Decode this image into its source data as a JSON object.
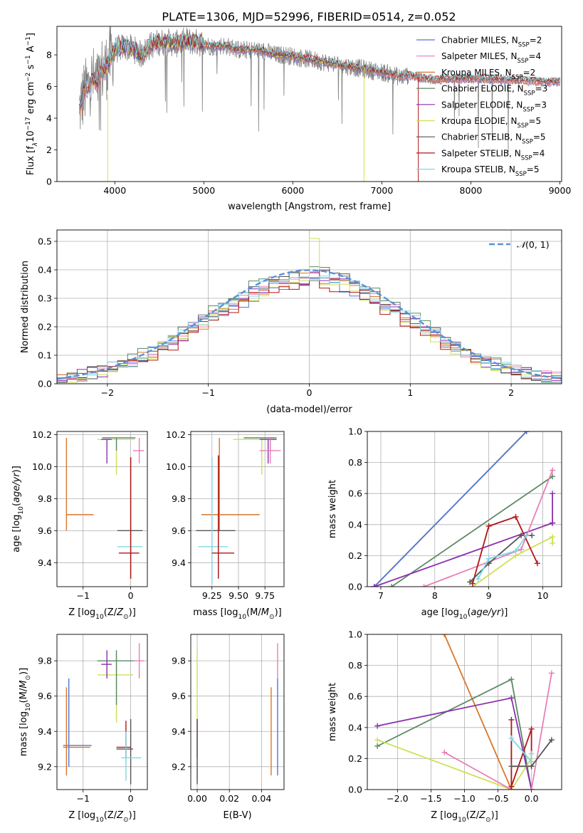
{
  "title": "PLATE=1306, MJD=52996, FIBERID=0514, z=0.052",
  "colors": {
    "chabrier_miles": "#4f79d4",
    "salpeter_miles": "#e87fb7",
    "kroupa_miles": "#d9762b",
    "chabrier_elodie": "#5a8a64",
    "salpeter_elodie": "#8b2fae",
    "kroupa_elodie": "#cfe052",
    "chabrier_stelib": "#555555",
    "salpeter_stelib": "#b31515",
    "kroupa_stelib": "#7fd8e4",
    "gauss": "#5b8fd9",
    "obs": "#808080"
  },
  "legend": [
    {
      "label": "Chabrier MILES, N",
      "sub": "SSP",
      "tail": "=2",
      "color": "#4f79d4"
    },
    {
      "label": "Salpeter MILES, N",
      "sub": "SSP",
      "tail": "=4",
      "color": "#e87fb7"
    },
    {
      "label": "Kroupa MILES, N",
      "sub": "SSP",
      "tail": "=2",
      "color": "#d9762b"
    },
    {
      "label": "Chabrier ELODIE, N",
      "sub": "SSP",
      "tail": "=3",
      "color": "#5a8a64"
    },
    {
      "label": "Salpeter ELODIE, N",
      "sub": "SSP",
      "tail": "=3",
      "color": "#8b2fae"
    },
    {
      "label": "Kroupa ELODIE, N",
      "sub": "SSP",
      "tail": "=5",
      "color": "#cfe052"
    },
    {
      "label": "Chabrier STELIB, N",
      "sub": "SSP",
      "tail": "=5",
      "color": "#555555"
    },
    {
      "label": "Salpeter STELIB, N",
      "sub": "SSP",
      "tail": "=4",
      "color": "#b31515"
    },
    {
      "label": "Kroupa STELIB, N",
      "sub": "SSP",
      "tail": "=5",
      "color": "#7fd8e4"
    }
  ],
  "chart_data": [
    {
      "id": "spectrum",
      "type": "line",
      "xlabel": "wavelength [Angstrom, rest frame]",
      "ylabel": "Flux [f",
      "xlim": [
        3350,
        9020
      ],
      "ylim": [
        0,
        9.8
      ],
      "xticks": [
        "4000",
        "5000",
        "6000",
        "7000",
        "8000",
        "9000"
      ],
      "yticks": [
        "0",
        "2",
        "4",
        "6",
        "8"
      ],
      "grid": false,
      "legend_position": "right",
      "continuum": {
        "x": [
          3600,
          3650,
          3700,
          3750,
          3800,
          3850,
          3900,
          3950,
          4000,
          4100,
          4200,
          4300,
          4400,
          4500,
          4600,
          4700,
          4800,
          4900,
          5000,
          5100,
          5200,
          5300,
          5400,
          5500,
          5600,
          5700,
          5800,
          5900,
          6000,
          6100,
          6200,
          6300,
          6400,
          6500,
          6600,
          6700,
          6800,
          6900,
          7000,
          7100,
          7200,
          7300,
          7400,
          7500,
          7600,
          7700,
          7800,
          7900,
          8000,
          8200,
          8400,
          8600,
          8800,
          9000
        ],
        "y": [
          4.5,
          5.5,
          6.0,
          6.5,
          6.1,
          7.0,
          7.2,
          7.8,
          8.3,
          8.5,
          8.4,
          8.0,
          8.6,
          8.8,
          8.8,
          8.7,
          8.9,
          8.8,
          8.7,
          8.5,
          8.6,
          8.5,
          8.3,
          8.3,
          8.3,
          8.2,
          8.0,
          8.0,
          7.9,
          7.8,
          7.7,
          7.6,
          7.5,
          7.4,
          7.3,
          7.2,
          7.1,
          7.0,
          6.9,
          6.8,
          6.6,
          6.7,
          6.6,
          6.5,
          6.4,
          6.5,
          6.5,
          6.5,
          6.5,
          6.5,
          6.4,
          6.4,
          6.3,
          6.3
        ]
      }
    },
    {
      "id": "residuals",
      "type": "histogram",
      "xlabel": "(data-model)/error",
      "ylabel": "Normed distribution",
      "xlim": [
        -2.5,
        2.5
      ],
      "ylim": [
        0,
        0.54
      ],
      "xticks": [
        "−2",
        "−1",
        "0",
        "1",
        "2"
      ],
      "yticks": [
        "0.0",
        "0.1",
        "0.2",
        "0.3",
        "0.4",
        "0.5"
      ],
      "grid": true,
      "legend_position": "top-right",
      "gauss_label": "(0, 1)",
      "bin_width": 0.1,
      "series_peak": [
        0.36,
        0.38,
        0.37,
        0.4,
        0.37,
        0.36,
        0.39,
        0.35,
        0.38
      ]
    },
    {
      "id": "Z_vs_age",
      "type": "scatter",
      "xlabel": "Z [log",
      "ylabel": "age  [log",
      "xlim": [
        -1.55,
        0.35
      ],
      "ylim": [
        9.25,
        10.22
      ],
      "xticks": [
        "−1",
        "0"
      ],
      "yticks": [
        "9.4",
        "9.6",
        "9.8",
        "10.0",
        "10.2"
      ],
      "grid": true,
      "points": [
        {
          "s": "kroupa_miles",
          "x": -1.35,
          "y": 9.7,
          "xe": [
            -1.35,
            -0.78
          ],
          "ye": [
            9.6,
            10.18
          ]
        },
        {
          "s": "chabrier_stelib",
          "x": 0.0,
          "y": 9.6,
          "xe": [
            -0.28,
            0.25
          ],
          "ye": [
            9.3,
            10.05
          ]
        },
        {
          "s": "kroupa_stelib",
          "x": 0.0,
          "y": 9.5,
          "xe": [
            -0.28,
            0.25
          ],
          "ye": [
            9.3,
            10.06
          ]
        },
        {
          "s": "salpeter_stelib",
          "x": 0.0,
          "y": 9.46,
          "xe": [
            -0.25,
            0.18
          ],
          "ye": [
            9.3,
            10.06
          ]
        },
        {
          "s": "kroupa_elodie",
          "x": -0.3,
          "y": 10.17,
          "xe": [
            -0.7,
            0.08
          ],
          "ye": [
            9.95,
            10.17
          ]
        },
        {
          "s": "chabrier_elodie",
          "x": -0.3,
          "y": 10.18,
          "xe": [
            -0.6,
            0.1
          ],
          "ye": [
            10.1,
            10.18
          ]
        },
        {
          "s": "salpeter_elodie",
          "x": -0.5,
          "y": 10.17,
          "xe": [
            -0.62,
            -0.4
          ],
          "ye": [
            10.02,
            10.17
          ]
        },
        {
          "s": "salpeter_miles",
          "x": 0.18,
          "y": 10.1,
          "xe": [
            0.05,
            0.28
          ],
          "ye": [
            10.02,
            10.18
          ]
        }
      ]
    },
    {
      "id": "mass_vs_age",
      "type": "scatter",
      "xlabel": "mass [log",
      "ylabel": "",
      "xlim": [
        9.05,
        9.93
      ],
      "ylim": [
        9.25,
        10.22
      ],
      "xticks": [
        "9.25",
        "9.50",
        "9.75"
      ],
      "yticks": [
        "9.4",
        "9.6",
        "9.8",
        "10.0",
        "10.2"
      ],
      "grid": true,
      "points": [
        {
          "s": "kroupa_miles",
          "x": 9.32,
          "y": 9.7,
          "xe": [
            9.15,
            9.7
          ],
          "ye": [
            9.6,
            10.18
          ]
        },
        {
          "s": "chabrier_stelib",
          "x": 9.31,
          "y": 9.6,
          "xe": [
            9.1,
            9.47
          ],
          "ye": [
            9.3,
            10.07
          ]
        },
        {
          "s": "kroupa_stelib",
          "x": 9.25,
          "y": 9.5,
          "xe": [
            9.12,
            9.4
          ],
          "ye": [
            9.27,
            10.06
          ]
        },
        {
          "s": "salpeter_stelib",
          "x": 9.31,
          "y": 9.46,
          "xe": [
            9.25,
            9.46
          ],
          "ye": [
            9.3,
            10.07
          ]
        },
        {
          "s": "kroupa_elodie",
          "x": 9.72,
          "y": 10.17,
          "xe": [
            9.45,
            9.84
          ],
          "ye": [
            9.95,
            10.17
          ]
        },
        {
          "s": "chabrier_elodie",
          "x": 9.8,
          "y": 10.18,
          "xe": [
            9.55,
            9.86
          ],
          "ye": [
            10.1,
            10.18
          ]
        },
        {
          "s": "salpeter_elodie",
          "x": 9.78,
          "y": 10.17,
          "xe": [
            9.7,
            9.86
          ],
          "ye": [
            10.02,
            10.17
          ]
        },
        {
          "s": "salpeter_miles",
          "x": 9.8,
          "y": 10.1,
          "xe": [
            9.7,
            9.9
          ],
          "ye": [
            10.02,
            10.18
          ]
        }
      ]
    },
    {
      "id": "age_vs_weight",
      "type": "line",
      "xlabel": "age  [log",
      "ylabel": "mass weight",
      "xlim": [
        6.75,
        10.35
      ],
      "ylim": [
        0,
        1.0
      ],
      "xticks": [
        "7",
        "8",
        "9",
        "10"
      ],
      "yticks": [
        "0.0",
        "0.2",
        "0.4",
        "0.6",
        "0.8",
        "1.0"
      ],
      "grid": true,
      "series": [
        {
          "s": "kroupa_miles",
          "x": [
            6.88,
            9.7
          ],
          "y": [
            0.0,
            1.0
          ]
        },
        {
          "s": "chabrier_miles",
          "x": [
            6.88,
            9.7
          ],
          "y": [
            0.0,
            1.0
          ]
        },
        {
          "s": "chabrier_elodie",
          "x": [
            7.2,
            10.18
          ],
          "y": [
            0.0,
            0.71
          ]
        },
        {
          "s": "salpeter_elodie",
          "x": [
            6.88,
            10.18
          ],
          "y": [
            0.0,
            0.41
          ]
        },
        {
          "s": "salpeter_elodie",
          "x": [
            10.18,
            10.18
          ],
          "y": [
            0.41,
            0.6
          ]
        },
        {
          "s": "kroupa_elodie",
          "x": [
            8.7,
            9.5,
            10.18,
            10.18
          ],
          "y": [
            0.0,
            0.2,
            0.32,
            0.28
          ]
        },
        {
          "s": "salpeter_miles",
          "x": [
            7.8,
            9.6,
            10.18
          ],
          "y": [
            0.0,
            0.24,
            0.75
          ]
        },
        {
          "s": "salpeter_stelib",
          "x": [
            8.7,
            9.0,
            9.5,
            9.9
          ],
          "y": [
            0.02,
            0.39,
            0.45,
            0.15
          ]
        },
        {
          "s": "chabrier_stelib",
          "x": [
            8.65,
            9.0,
            9.6,
            9.8
          ],
          "y": [
            0.03,
            0.15,
            0.33,
            0.33
          ]
        },
        {
          "s": "kroupa_stelib",
          "x": [
            8.8,
            9.0,
            9.5,
            9.7
          ],
          "y": [
            0.05,
            0.18,
            0.23,
            0.33
          ]
        }
      ]
    },
    {
      "id": "Z_vs_mass",
      "type": "scatter",
      "xlabel": "Z [log",
      "ylabel": "mass [log",
      "xlim": [
        -1.55,
        0.35
      ],
      "ylim": [
        9.07,
        9.95
      ],
      "xticks": [
        "−1",
        "0"
      ],
      "yticks": [
        "9.2",
        "9.4",
        "9.6",
        "9.8"
      ],
      "grid": true,
      "points": [
        {
          "s": "chabrier_miles",
          "x": -1.3,
          "y": 9.32,
          "xe": [
            -1.42,
            -0.82
          ],
          "ye": [
            9.2,
            9.7
          ]
        },
        {
          "s": "kroupa_miles",
          "x": -1.35,
          "y": 9.31,
          "xe": [
            -1.42,
            -0.85
          ],
          "ye": [
            9.15,
            9.65
          ]
        },
        {
          "s": "chabrier_stelib",
          "x": 0.0,
          "y": 9.3,
          "xe": [
            -0.3,
            0.05
          ],
          "ye": [
            9.1,
            9.47
          ]
        },
        {
          "s": "salpeter_stelib",
          "x": -0.1,
          "y": 9.31,
          "xe": [
            -0.3,
            0.0
          ],
          "ye": [
            9.25,
            9.46
          ]
        },
        {
          "s": "kroupa_stelib",
          "x": -0.1,
          "y": 9.25,
          "xe": [
            -0.2,
            0.22
          ],
          "ye": [
            9.12,
            9.4
          ]
        },
        {
          "s": "kroupa_elodie",
          "x": -0.3,
          "y": 9.72,
          "xe": [
            -0.7,
            0.05
          ],
          "ye": [
            9.45,
            9.84
          ]
        },
        {
          "s": "chabrier_elodie",
          "x": -0.3,
          "y": 9.8,
          "xe": [
            -0.7,
            0.08
          ],
          "ye": [
            9.55,
            9.86
          ]
        },
        {
          "s": "salpeter_elodie",
          "x": -0.5,
          "y": 9.78,
          "xe": [
            -0.62,
            -0.4
          ],
          "ye": [
            9.7,
            9.86
          ]
        },
        {
          "s": "salpeter_miles",
          "x": 0.18,
          "y": 9.8,
          "xe": [
            0.05,
            0.28
          ],
          "ye": [
            9.7,
            9.9
          ]
        }
      ]
    },
    {
      "id": "ebv_vs_mass",
      "type": "scatter",
      "xlabel": "E(B-V)",
      "ylabel": "",
      "xlim": [
        -0.004,
        0.054
      ],
      "ylim": [
        9.07,
        9.95
      ],
      "xticks": [
        "0.00",
        "0.02",
        "0.04"
      ],
      "yticks": [
        "9.2",
        "9.4",
        "9.6",
        "9.8"
      ],
      "grid": true,
      "vlines": [
        {
          "s": "kroupa_elodie",
          "x": 0.0,
          "ye": [
            9.45,
            9.86
          ]
        },
        {
          "s": "salpeter_stelib",
          "x": 0.0,
          "ye": [
            9.25,
            9.47
          ]
        },
        {
          "s": "kroupa_stelib",
          "x": 0.0,
          "ye": [
            9.12,
            9.4
          ]
        },
        {
          "s": "chabrier_stelib",
          "x": 0.0,
          "ye": [
            9.1,
            9.47
          ]
        },
        {
          "s": "kroupa_miles",
          "x": 0.046,
          "ye": [
            9.15,
            9.65
          ]
        },
        {
          "s": "chabrier_miles",
          "x": 0.05,
          "ye": [
            9.15,
            9.7
          ]
        },
        {
          "s": "salpeter_miles",
          "x": 0.05,
          "ye": [
            9.7,
            9.9
          ]
        }
      ]
    },
    {
      "id": "Z_vs_weight",
      "type": "line",
      "xlabel": "Z [log",
      "ylabel": "mass weight",
      "xlim": [
        -2.45,
        0.45
      ],
      "ylim": [
        0,
        1.0
      ],
      "xticks": [
        "−2.0",
        "−1.5",
        "−1.0",
        "−0.5",
        "0.0"
      ],
      "yticks": [
        "0.0",
        "0.2",
        "0.4",
        "0.6",
        "0.8",
        "1.0"
      ],
      "grid": true,
      "series": [
        {
          "s": "kroupa_miles",
          "x": [
            -1.3,
            -0.3
          ],
          "y": [
            1.0,
            0.0
          ]
        },
        {
          "s": "chabrier_elodie",
          "x": [
            -2.3,
            -0.3,
            0.0
          ],
          "y": [
            0.28,
            0.71,
            0.0
          ]
        },
        {
          "s": "salpeter_elodie",
          "x": [
            -2.3,
            -0.3,
            0.0
          ],
          "y": [
            0.41,
            0.59,
            0.0
          ]
        },
        {
          "s": "kroupa_elodie",
          "x": [
            -2.3,
            -0.3,
            0.0
          ],
          "y": [
            0.32,
            0.0,
            0.2
          ]
        },
        {
          "s": "salpeter_miles",
          "x": [
            -1.3,
            -0.3,
            0.0,
            0.3
          ],
          "y": [
            0.24,
            0.0,
            0.0,
            0.75
          ]
        },
        {
          "s": "salpeter_stelib",
          "x": [
            -0.3,
            -0.3,
            0.0,
            0.0
          ],
          "y": [
            0.45,
            0.02,
            0.39,
            0.15
          ]
        },
        {
          "s": "chabrier_stelib",
          "x": [
            -0.3,
            0.0,
            0.3
          ],
          "y": [
            0.15,
            0.15,
            0.32
          ]
        },
        {
          "s": "kroupa_stelib",
          "x": [
            -0.3,
            0.0,
            0.0
          ],
          "y": [
            0.33,
            0.18,
            0.23
          ]
        }
      ]
    }
  ]
}
